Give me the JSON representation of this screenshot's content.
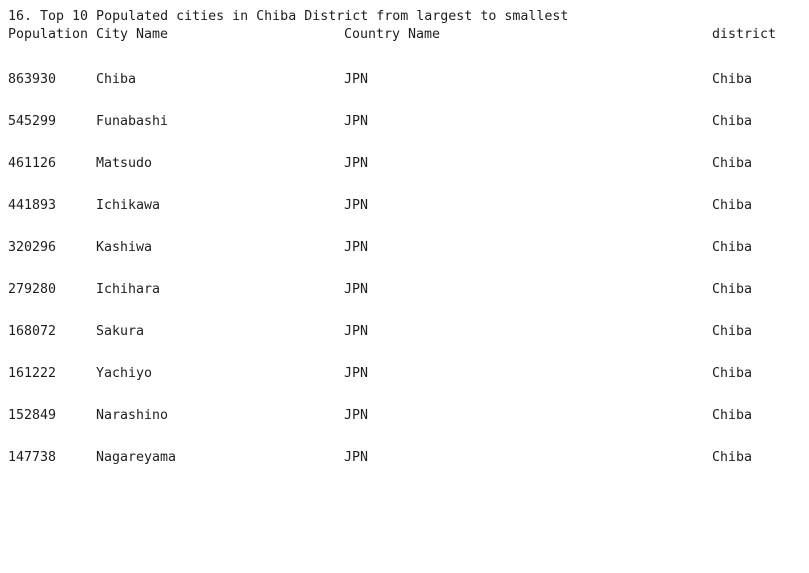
{
  "output": {
    "title": "16. Top 10 Populated cities in Chiba District from largest to smallest",
    "headers": {
      "population": "Population",
      "city": "City Name",
      "country": "Country Name",
      "district": "district"
    },
    "rows": [
      {
        "population": "863930",
        "city": "Chiba",
        "country": "JPN",
        "district": "Chiba"
      },
      {
        "population": "545299",
        "city": "Funabashi",
        "country": "JPN",
        "district": "Chiba"
      },
      {
        "population": "461126",
        "city": "Matsudo",
        "country": "JPN",
        "district": "Chiba"
      },
      {
        "population": "441893",
        "city": "Ichikawa",
        "country": "JPN",
        "district": "Chiba"
      },
      {
        "population": "320296",
        "city": "Kashiwa",
        "country": "JPN",
        "district": "Chiba"
      },
      {
        "population": "279280",
        "city": "Ichihara",
        "country": "JPN",
        "district": "Chiba"
      },
      {
        "population": "168072",
        "city": "Sakura",
        "country": "JPN",
        "district": "Chiba"
      },
      {
        "population": "161222",
        "city": "Yachiyo",
        "country": "JPN",
        "district": "Chiba"
      },
      {
        "population": "152849",
        "city": "Narashino",
        "country": "JPN",
        "district": "Chiba"
      },
      {
        "population": "147738",
        "city": "Nagareyama",
        "country": "JPN",
        "district": "Chiba"
      }
    ]
  }
}
